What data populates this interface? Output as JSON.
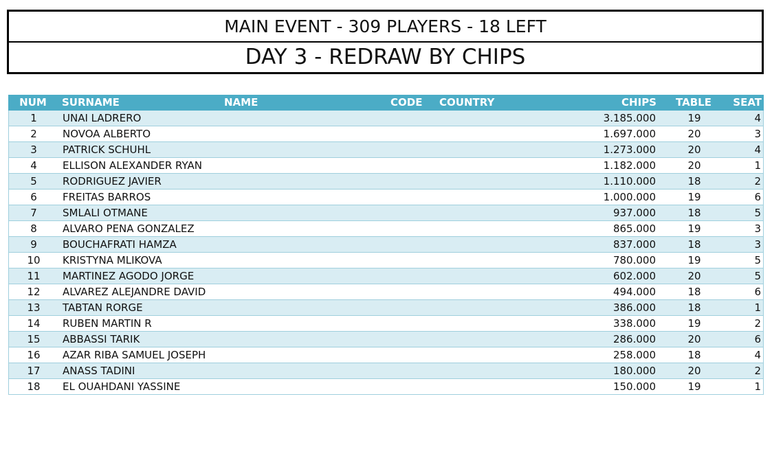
{
  "header": {
    "line1": "MAIN EVENT - 309 PLAYERS - 18 LEFT",
    "line2": "DAY 3 - REDRAW BY CHIPS"
  },
  "table": {
    "columns": {
      "num": "NUM",
      "surname": "SURNAME",
      "name": "NAME",
      "code": "CODE",
      "country": "COUNTRY",
      "chips": "CHIPS",
      "table": "TABLE",
      "seat": "SEAT"
    },
    "rows": [
      {
        "num": "1",
        "player": "UNAI LADRERO",
        "chips": "3.185.000",
        "table": "19",
        "seat": "4"
      },
      {
        "num": "2",
        "player": "NOVOA ALBERTO",
        "chips": "1.697.000",
        "table": "20",
        "seat": "3"
      },
      {
        "num": "3",
        "player": "PATRICK SCHUHL",
        "chips": "1.273.000",
        "table": "20",
        "seat": "4"
      },
      {
        "num": "4",
        "player": "ELLISON ALEXANDER RYAN",
        "chips": "1.182.000",
        "table": "20",
        "seat": "1"
      },
      {
        "num": "5",
        "player": "RODRIGUEZ JAVIER",
        "chips": "1.110.000",
        "table": "18",
        "seat": "2"
      },
      {
        "num": "6",
        "player": "FREITAS BARROS",
        "chips": "1.000.000",
        "table": "19",
        "seat": "6"
      },
      {
        "num": "7",
        "player": "SMLALI OTMANE",
        "chips": "937.000",
        "table": "18",
        "seat": "5"
      },
      {
        "num": "8",
        "player": "ALVARO PENA GONZALEZ",
        "chips": "865.000",
        "table": "19",
        "seat": "3"
      },
      {
        "num": "9",
        "player": "BOUCHAFRATI HAMZA",
        "chips": "837.000",
        "table": "18",
        "seat": "3"
      },
      {
        "num": "10",
        "player": "KRISTYNA MLIKOVA",
        "chips": "780.000",
        "table": "19",
        "seat": "5"
      },
      {
        "num": "11",
        "player": "MARTINEZ AGODO JORGE",
        "chips": "602.000",
        "table": "20",
        "seat": "5"
      },
      {
        "num": "12",
        "player": "ALVAREZ ALEJANDRE DAVID",
        "chips": "494.000",
        "table": "18",
        "seat": "6"
      },
      {
        "num": "13",
        "player": "TABTAN RORGE",
        "chips": "386.000",
        "table": "18",
        "seat": "1"
      },
      {
        "num": "14",
        "player": "RUBEN MARTIN R",
        "chips": "338.000",
        "table": "19",
        "seat": "2"
      },
      {
        "num": "15",
        "player": "ABBASSI TARIK",
        "chips": "286.000",
        "table": "20",
        "seat": "6"
      },
      {
        "num": "16",
        "player": "AZAR RIBA SAMUEL JOSEPH",
        "chips": "258.000",
        "table": "18",
        "seat": "4"
      },
      {
        "num": "17",
        "player": "ANASS TADINI",
        "chips": "180.000",
        "table": "20",
        "seat": "2"
      },
      {
        "num": "18",
        "player": "EL OUAHDANI YASSINE",
        "chips": "150.000",
        "table": "19",
        "seat": "1"
      }
    ]
  },
  "colors": {
    "header_bg": "#4bacc6",
    "row_alt_bg": "#d9edf3",
    "border": "#000000"
  }
}
